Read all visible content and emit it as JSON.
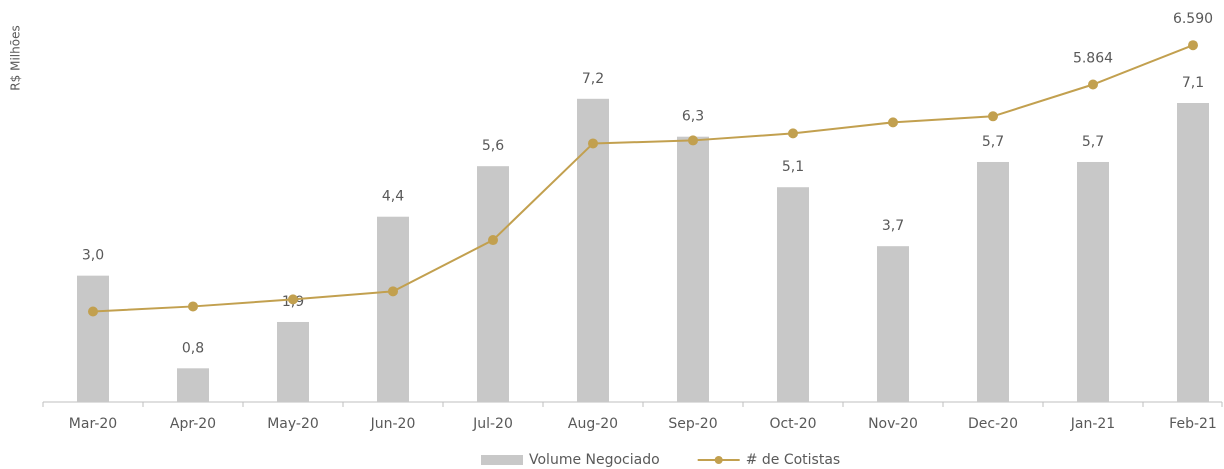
{
  "chart_data": {
    "type": "bar",
    "y_label": "R$ Milhões",
    "categories": [
      "Mar-20",
      "Apr-20",
      "May-20",
      "Jun-20",
      "Jul-20",
      "Aug-20",
      "Sep-20",
      "Oct-20",
      "Nov-20",
      "Dec-20",
      "Jan-21",
      "Feb-21"
    ],
    "series": [
      {
        "name": "Volume Negociado",
        "type": "bar",
        "color": "#c8c8c8",
        "values": [
          3.0,
          0.8,
          1.9,
          4.4,
          5.6,
          7.2,
          6.3,
          5.1,
          3.7,
          5.7,
          5.7,
          7.1
        ],
        "value_labels": [
          "3,0",
          "0,8",
          "1,9",
          "4,4",
          "5,6",
          "7,2",
          "6,3",
          "5,1",
          "3,7",
          "5,7",
          "5,7",
          "7,1"
        ]
      },
      {
        "name": "# de Cotistas",
        "type": "line",
        "axis": "y2",
        "color": "#c2a04f",
        "values": [
          1672,
          1765,
          1895,
          2044,
          2991,
          4775,
          4831,
          4961,
          5165,
          5277,
          5864,
          6590
        ],
        "value_labels": [
          null,
          null,
          null,
          null,
          null,
          null,
          null,
          null,
          null,
          null,
          "5.864",
          "6.590"
        ]
      }
    ],
    "ylim": [
      0,
      9
    ],
    "y2lim": [
      0,
      7000
    ],
    "legend": "bottom"
  }
}
